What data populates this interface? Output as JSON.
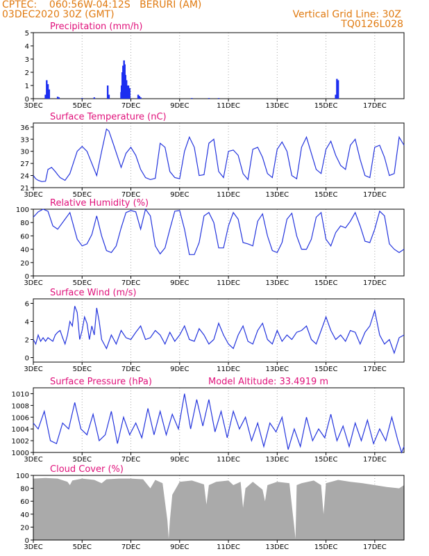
{
  "header": {
    "line1": "CPTEC:    060:56W-04:12S   BERURI (AM)",
    "line2": "03DEC2020 30Z (GMT)",
    "grid_note": "Vertical Grid Line: 30Z",
    "code": "TQ0126L028"
  },
  "colors": {
    "header": "#e07a10",
    "title": "#e0107a",
    "line": "#2233dd",
    "bar": "#1c2ef0",
    "cloud": "#aaaaaa"
  },
  "chart_data": [
    {
      "type": "bar",
      "title": "Precipitation (mm/h)",
      "x_range": [
        3.0,
        18.2
      ],
      "x_ticks": [
        "3DEC",
        "5DEC",
        "7DEC",
        "9DEC",
        "11DEC",
        "13DEC",
        "15DEC",
        "17DEC"
      ],
      "x_tick_values": [
        3,
        5,
        7,
        9,
        11,
        13,
        15,
        17
      ],
      "ylim": [
        0,
        5
      ],
      "yticks": [
        0,
        1,
        2,
        3,
        4,
        5
      ],
      "x": [
        3.5,
        3.55,
        3.6,
        3.65,
        4.0,
        4.05,
        5.0,
        5.5,
        6.05,
        6.1,
        6.6,
        6.62,
        6.65,
        6.68,
        6.72,
        6.75,
        6.78,
        6.82,
        6.85,
        6.9,
        6.95,
        7.3,
        7.35,
        7.4,
        9.5,
        10.2,
        10.6,
        15.4,
        15.45,
        15.5
      ],
      "values": [
        0.3,
        1.4,
        1.1,
        0.7,
        0.15,
        0.1,
        0.05,
        0.1,
        1.0,
        0.3,
        0.5,
        1.0,
        2.0,
        2.5,
        2.9,
        2.6,
        1.8,
        1.4,
        1.0,
        1.0,
        0.8,
        0.3,
        0.2,
        0.1,
        0.05,
        0.05,
        0.05,
        0.3,
        1.5,
        1.4
      ]
    },
    {
      "type": "line",
      "title": "Surface Temperature (nC)",
      "x_range": [
        3.0,
        18.2
      ],
      "x_ticks": [
        "3DEC",
        "5DEC",
        "7DEC",
        "9DEC",
        "11DEC",
        "13DEC",
        "15DEC",
        "17DEC"
      ],
      "ylim": [
        21,
        37
      ],
      "yticks": [
        21,
        24,
        27,
        30,
        33,
        36
      ],
      "x": [
        3.0,
        3.1,
        3.2,
        3.35,
        3.5,
        3.6,
        3.75,
        3.9,
        4.0,
        4.1,
        4.3,
        4.5,
        4.8,
        5.0,
        5.2,
        5.4,
        5.6,
        5.8,
        6.0,
        6.1,
        6.3,
        6.6,
        6.8,
        7.0,
        7.2,
        7.4,
        7.6,
        7.8,
        8.0,
        8.2,
        8.4,
        8.6,
        8.8,
        9.0,
        9.2,
        9.4,
        9.6,
        9.8,
        10.0,
        10.2,
        10.4,
        10.6,
        10.8,
        11.0,
        11.2,
        11.4,
        11.6,
        11.8,
        12.0,
        12.2,
        12.4,
        12.6,
        12.8,
        13.0,
        13.2,
        13.4,
        13.6,
        13.8,
        14.0,
        14.2,
        14.4,
        14.6,
        14.8,
        15.0,
        15.2,
        15.4,
        15.6,
        15.8,
        16.0,
        16.2,
        16.4,
        16.6,
        16.8,
        17.0,
        17.2,
        17.4,
        17.6,
        17.8,
        18.0,
        18.2
      ],
      "values": [
        24,
        23.2,
        22.8,
        22.5,
        22.6,
        25.5,
        26.0,
        25.0,
        24.2,
        23.5,
        22.8,
        24.5,
        30.0,
        31.2,
        30.0,
        27.0,
        24.0,
        30.0,
        35.5,
        35.0,
        31.5,
        26.0,
        29.5,
        31.0,
        29.0,
        25.5,
        23.5,
        23.0,
        23.3,
        32.0,
        31.0,
        25.0,
        23.5,
        23.2,
        30.0,
        33.5,
        31.0,
        24.0,
        24.2,
        32.0,
        33.0,
        25.0,
        23.5,
        30.0,
        30.3,
        29.0,
        24.5,
        23.0,
        30.5,
        31.0,
        28.5,
        24.5,
        23.5,
        30.5,
        32.3,
        30.0,
        24.0,
        23.2,
        31.0,
        33.5,
        29.5,
        25.5,
        24.5,
        30.5,
        32.5,
        29.0,
        26.5,
        25.5,
        31.5,
        33.0,
        28.0,
        24.0,
        23.5,
        31.0,
        31.5,
        28.5,
        24.0,
        24.5,
        33.5,
        31.5
      ]
    },
    {
      "type": "line",
      "title": "Relative Humidity (%)",
      "x_range": [
        3.0,
        18.2
      ],
      "x_ticks": [
        "3DEC",
        "5DEC",
        "7DEC",
        "9DEC",
        "11DEC",
        "13DEC",
        "15DEC",
        "17DEC"
      ],
      "ylim": [
        0,
        100
      ],
      "yticks": [
        0,
        20,
        40,
        60,
        80,
        100
      ],
      "x": [
        3.0,
        3.2,
        3.4,
        3.6,
        3.8,
        4.0,
        4.3,
        4.5,
        4.8,
        5.0,
        5.2,
        5.4,
        5.6,
        5.8,
        6.0,
        6.2,
        6.4,
        6.6,
        6.8,
        7.0,
        7.2,
        7.4,
        7.6,
        7.8,
        8.0,
        8.2,
        8.4,
        8.6,
        8.8,
        9.0,
        9.2,
        9.4,
        9.6,
        9.8,
        10.0,
        10.2,
        10.4,
        10.6,
        10.8,
        11.0,
        11.2,
        11.4,
        11.6,
        11.8,
        12.0,
        12.2,
        12.4,
        12.6,
        12.8,
        13.0,
        13.2,
        13.4,
        13.6,
        13.8,
        14.0,
        14.2,
        14.4,
        14.6,
        14.8,
        15.0,
        15.2,
        15.4,
        15.6,
        15.8,
        16.0,
        16.2,
        16.4,
        16.6,
        16.8,
        17.0,
        17.2,
        17.4,
        17.6,
        17.8,
        18.0,
        18.2
      ],
      "values": [
        88,
        96,
        100,
        97,
        75,
        70,
        85,
        95,
        55,
        45,
        48,
        62,
        90,
        60,
        38,
        35,
        45,
        72,
        95,
        98,
        96,
        70,
        100,
        90,
        45,
        33,
        42,
        70,
        97,
        98,
        70,
        32,
        32,
        50,
        90,
        95,
        80,
        42,
        42,
        75,
        95,
        85,
        50,
        48,
        45,
        82,
        93,
        60,
        38,
        35,
        50,
        85,
        94,
        60,
        40,
        40,
        55,
        88,
        95,
        55,
        45,
        65,
        75,
        72,
        82,
        95,
        75,
        52,
        50,
        70,
        97,
        90,
        48,
        40,
        35,
        40
      ]
    },
    {
      "type": "line",
      "title": "Surface Wind (m/s)",
      "x_range": [
        3.0,
        18.2
      ],
      "x_ticks": [
        "3DEC",
        "5DEC",
        "7DEC",
        "9DEC",
        "11DEC",
        "13DEC",
        "15DEC",
        "17DEC"
      ],
      "ylim": [
        -0.5,
        6.5
      ],
      "yticks": [
        0,
        2,
        4,
        6
      ],
      "x": [
        3.0,
        3.1,
        3.2,
        3.3,
        3.4,
        3.5,
        3.6,
        3.7,
        3.8,
        3.9,
        4.0,
        4.1,
        4.2,
        4.3,
        4.4,
        4.5,
        4.6,
        4.7,
        4.8,
        4.9,
        5.0,
        5.1,
        5.2,
        5.3,
        5.4,
        5.5,
        5.6,
        5.7,
        5.8,
        5.9,
        6.0,
        6.2,
        6.4,
        6.6,
        6.8,
        7.0,
        7.2,
        7.4,
        7.6,
        7.8,
        8.0,
        8.2,
        8.4,
        8.6,
        8.8,
        9.0,
        9.2,
        9.4,
        9.6,
        9.8,
        10.0,
        10.2,
        10.4,
        10.6,
        10.8,
        11.0,
        11.2,
        11.4,
        11.6,
        11.8,
        12.0,
        12.2,
        12.4,
        12.6,
        12.8,
        13.0,
        13.2,
        13.4,
        13.6,
        13.8,
        14.0,
        14.2,
        14.4,
        14.6,
        14.8,
        15.0,
        15.2,
        15.4,
        15.6,
        15.8,
        16.0,
        16.2,
        16.4,
        16.6,
        16.8,
        17.0,
        17.2,
        17.4,
        17.6,
        17.8,
        18.0,
        18.2
      ],
      "values": [
        2.0,
        1.5,
        2.5,
        1.8,
        2.2,
        1.8,
        2.2,
        2.0,
        1.8,
        2.5,
        2.8,
        3.0,
        2.2,
        1.5,
        2.5,
        4.0,
        3.5,
        5.7,
        5.0,
        2.0,
        3.0,
        4.5,
        3.8,
        2.0,
        3.5,
        2.5,
        5.5,
        4.0,
        2.0,
        1.5,
        1.0,
        2.5,
        1.5,
        3.0,
        2.2,
        2.0,
        2.8,
        3.5,
        2.0,
        2.2,
        3.0,
        2.5,
        1.5,
        2.8,
        1.8,
        2.5,
        3.5,
        2.0,
        1.8,
        3.2,
        2.5,
        1.5,
        2.0,
        3.8,
        2.5,
        1.5,
        1.0,
        2.5,
        3.5,
        1.8,
        1.5,
        3.0,
        3.8,
        2.0,
        1.5,
        3.0,
        1.8,
        2.5,
        2.0,
        2.8,
        3.0,
        3.5,
        2.0,
        1.5,
        3.0,
        4.5,
        3.0,
        2.0,
        2.5,
        1.8,
        3.0,
        2.8,
        1.5,
        2.8,
        3.5,
        5.2,
        2.5,
        1.5,
        2.0,
        0.5,
        2.2,
        2.5
      ]
    },
    {
      "type": "line",
      "title": "Surface Pressure (hPa)",
      "annotation": "Model Altitude: 33.4919 m",
      "x_range": [
        3.0,
        18.2
      ],
      "x_ticks": [
        "3DEC",
        "5DEC",
        "7DEC",
        "9DEC",
        "11DEC",
        "13DEC",
        "15DEC",
        "17DEC"
      ],
      "ylim": [
        1000,
        1011
      ],
      "yticks": [
        1000,
        1002,
        1004,
        1006,
        1008,
        1010
      ],
      "x": [
        3.0,
        3.2,
        3.45,
        3.7,
        3.95,
        4.2,
        4.45,
        4.7,
        4.95,
        5.2,
        5.45,
        5.7,
        5.95,
        6.2,
        6.45,
        6.7,
        6.95,
        7.2,
        7.45,
        7.7,
        7.95,
        8.2,
        8.45,
        8.7,
        8.95,
        9.2,
        9.45,
        9.7,
        9.95,
        10.2,
        10.45,
        10.7,
        10.95,
        11.2,
        11.45,
        11.7,
        11.95,
        12.2,
        12.45,
        12.7,
        12.95,
        13.2,
        13.45,
        13.7,
        13.95,
        14.2,
        14.45,
        14.7,
        14.95,
        15.2,
        15.45,
        15.7,
        15.95,
        16.2,
        16.45,
        16.7,
        16.95,
        17.2,
        17.45,
        17.7,
        17.95,
        18.1,
        18.2
      ],
      "values": [
        1005,
        1004,
        1007,
        1002,
        1001.5,
        1005,
        1004,
        1008.5,
        1004,
        1003,
        1006.5,
        1002,
        1003,
        1007,
        1001.5,
        1006,
        1003,
        1005,
        1002.5,
        1007.5,
        1003,
        1007,
        1003,
        1006.5,
        1004,
        1010,
        1004,
        1009,
        1004.5,
        1009,
        1003.5,
        1007,
        1002.5,
        1007,
        1004,
        1006,
        1002,
        1005,
        1001,
        1005,
        1003.5,
        1006,
        1000.5,
        1004,
        1001,
        1006,
        1002,
        1004,
        1002.5,
        1006.5,
        1002,
        1004.5,
        1001,
        1005,
        1002,
        1005.5,
        1001.5,
        1004,
        1002,
        1006,
        1002,
        1000,
        1001
      ]
    },
    {
      "type": "area",
      "title": "Cloud Cover (%)",
      "x_range": [
        3.0,
        18.2
      ],
      "x_ticks": [
        "3DEC",
        "5DEC",
        "7DEC",
        "9DEC",
        "11DEC",
        "13DEC",
        "15DEC",
        "17DEC"
      ],
      "ylim": [
        0,
        100
      ],
      "yticks": [
        0,
        20,
        40,
        60,
        80,
        100
      ],
      "x": [
        3.0,
        3.5,
        4.0,
        4.4,
        4.5,
        4.6,
        5.0,
        5.5,
        5.8,
        6.0,
        6.5,
        7.0,
        7.5,
        7.8,
        8.0,
        8.3,
        8.5,
        8.55,
        8.6,
        8.7,
        9.0,
        9.5,
        10.0,
        10.1,
        10.2,
        10.5,
        11.0,
        11.2,
        11.5,
        11.6,
        11.7,
        12.0,
        12.4,
        12.5,
        12.6,
        13.0,
        13.5,
        13.7,
        13.75,
        13.8,
        14.0,
        14.5,
        14.8,
        14.9,
        15.0,
        15.5,
        16.0,
        16.5,
        17.0,
        17.5,
        18.0,
        18.2
      ],
      "values": [
        95,
        96,
        95,
        90,
        85,
        92,
        95,
        93,
        88,
        94,
        95,
        95,
        94,
        80,
        93,
        88,
        30,
        2,
        30,
        70,
        90,
        92,
        86,
        55,
        85,
        90,
        92,
        85,
        90,
        50,
        80,
        90,
        78,
        60,
        85,
        90,
        88,
        20,
        2,
        85,
        88,
        92,
        85,
        40,
        88,
        93,
        90,
        88,
        85,
        82,
        80,
        85
      ]
    }
  ]
}
